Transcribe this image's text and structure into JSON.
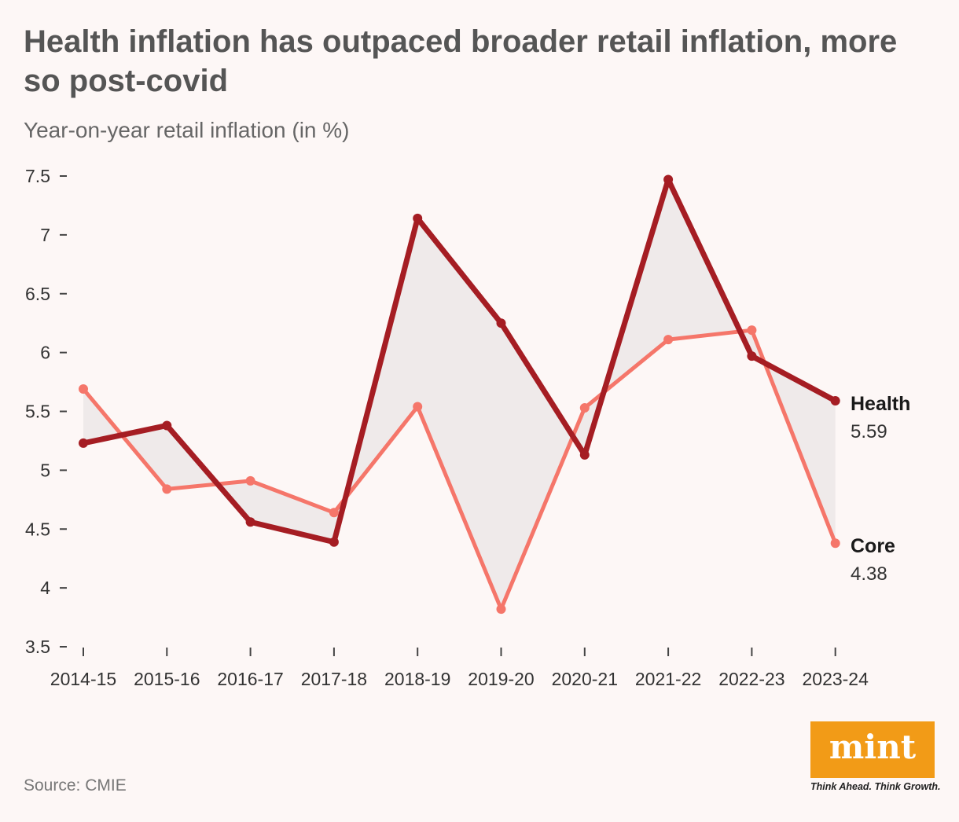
{
  "title": "Health inflation has outpaced broader retail inflation, more so post-covid",
  "subtitle": "Year-on-year retail inflation (in %)",
  "source": "Source: CMIE",
  "brand": {
    "name": "mint",
    "tagline": "Think Ahead. Think Growth.",
    "color": "#f29b17"
  },
  "chart_data": {
    "type": "line",
    "title": "Health inflation has outpaced broader retail inflation, more so post-covid",
    "ylabel": "Year-on-year retail inflation (in %)",
    "xlabel": "",
    "categories": [
      "2014-15",
      "2015-16",
      "2016-17",
      "2017-18",
      "2018-19",
      "2019-20",
      "2020-21",
      "2021-22",
      "2022-23",
      "2023-24"
    ],
    "ylim": [
      3.5,
      7.5
    ],
    "yticks": [
      3.5,
      4,
      4.5,
      5,
      5.5,
      6,
      6.5,
      7,
      7.5
    ],
    "ytick_labels": [
      "3.5",
      "4",
      "4.5",
      "5",
      "5.5",
      "6",
      "6.5",
      "7",
      "7.5"
    ],
    "grid": false,
    "legend": "direct labels at right end of lines",
    "fill_between": true,
    "series": [
      {
        "name": "Health",
        "color": "#a51d23",
        "values": [
          5.23,
          5.38,
          4.56,
          4.39,
          7.14,
          6.25,
          5.13,
          7.47,
          5.97,
          5.59
        ],
        "end_label": "5.59"
      },
      {
        "name": "Core",
        "color": "#f5766a",
        "values": [
          5.69,
          4.84,
          4.91,
          4.64,
          5.54,
          3.82,
          5.53,
          6.11,
          6.19,
          4.38
        ],
        "end_label": "4.38"
      }
    ]
  }
}
